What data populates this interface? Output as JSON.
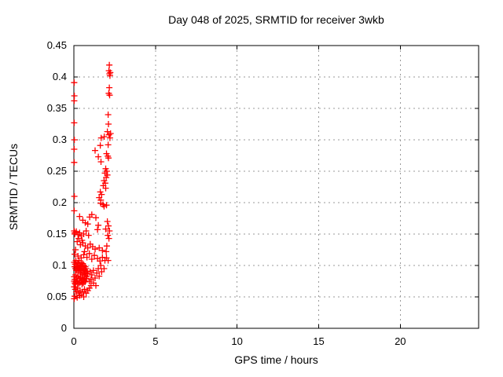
{
  "page": {
    "background": "#ffffff"
  },
  "chart_data": {
    "type": "scatter",
    "title": "Day 048 of 2025, SRMTID for receiver 3wkb",
    "xlabel": "GPS time / hours",
    "ylabel": "SRMTID / TECUs",
    "xlim": [
      0,
      24.8
    ],
    "ylim": [
      0,
      0.45
    ],
    "xticks": [
      0,
      5,
      10,
      15,
      20
    ],
    "xtick_labels": [
      "0",
      "5",
      "10",
      "15",
      "20"
    ],
    "yticks": [
      0,
      0.05,
      0.1,
      0.15,
      0.2,
      0.25,
      0.3,
      0.35,
      0.4,
      0.45
    ],
    "ytick_labels": [
      "0",
      "0.05",
      "0.1",
      "0.15",
      "0.2",
      "0.25",
      "0.3",
      "0.35",
      "0.4",
      "0.45"
    ],
    "grid": true,
    "legend_position": "none",
    "marker": {
      "shape": "plus",
      "color": "#ff0000",
      "size": 8
    },
    "grid_color": "#9a9a9a",
    "axis_color": "#000000",
    "series_name": "SRMTID",
    "points": [
      [
        0.02,
        0.391
      ],
      [
        0.03,
        0.37
      ],
      [
        0.02,
        0.362
      ],
      [
        0.02,
        0.327
      ],
      [
        0.03,
        0.3
      ],
      [
        0.02,
        0.285
      ],
      [
        0.02,
        0.264
      ],
      [
        0.03,
        0.21
      ],
      [
        0.02,
        0.187
      ],
      [
        0.02,
        0.155
      ],
      [
        0.06,
        0.152
      ],
      [
        2.17,
        0.419
      ],
      [
        2.15,
        0.41
      ],
      [
        2.18,
        0.405
      ],
      [
        2.21,
        0.402
      ],
      [
        2.23,
        0.407
      ],
      [
        2.17,
        0.383
      ],
      [
        2.14,
        0.374
      ],
      [
        2.19,
        0.371
      ],
      [
        2.1,
        0.34
      ],
      [
        2.12,
        0.325
      ],
      [
        2.05,
        0.313
      ],
      [
        2.15,
        0.308
      ],
      [
        2.21,
        0.303
      ],
      [
        1.67,
        0.303
      ],
      [
        1.86,
        0.305
      ],
      [
        2.25,
        0.31
      ],
      [
        2.1,
        0.292
      ],
      [
        1.62,
        0.291
      ],
      [
        2.0,
        0.278
      ],
      [
        2.08,
        0.274
      ],
      [
        2.12,
        0.271
      ],
      [
        1.66,
        0.265
      ],
      [
        1.95,
        0.254
      ],
      [
        2.02,
        0.25
      ],
      [
        1.9,
        0.247
      ],
      [
        2.05,
        0.244
      ],
      [
        1.98,
        0.24
      ],
      [
        1.85,
        0.235
      ],
      [
        1.92,
        0.231
      ],
      [
        1.8,
        0.227
      ],
      [
        1.95,
        0.223
      ],
      [
        1.62,
        0.217
      ],
      [
        1.7,
        0.213
      ],
      [
        1.55,
        0.208
      ],
      [
        1.65,
        0.204
      ],
      [
        1.64,
        0.199
      ],
      [
        1.78,
        0.197
      ],
      [
        2.0,
        0.196
      ],
      [
        1.85,
        0.194
      ],
      [
        1.3,
        0.283
      ],
      [
        1.5,
        0.273
      ],
      [
        0.35,
        0.178
      ],
      [
        0.55,
        0.172
      ],
      [
        0.97,
        0.177
      ],
      [
        1.1,
        0.181
      ],
      [
        1.35,
        0.176
      ],
      [
        0.7,
        0.168
      ],
      [
        1.5,
        0.164
      ],
      [
        1.45,
        0.157
      ],
      [
        0.85,
        0.166
      ],
      [
        0.05,
        0.15
      ],
      [
        0.15,
        0.154
      ],
      [
        0.25,
        0.149
      ],
      [
        0.35,
        0.152
      ],
      [
        0.45,
        0.147
      ],
      [
        0.6,
        0.15
      ],
      [
        0.75,
        0.155
      ],
      [
        0.9,
        0.148
      ],
      [
        0.3,
        0.143
      ],
      [
        0.5,
        0.14
      ],
      [
        1.95,
        0.158
      ],
      [
        2.05,
        0.17
      ],
      [
        2.12,
        0.163
      ],
      [
        2.18,
        0.155
      ],
      [
        2.08,
        0.148
      ],
      [
        2.15,
        0.143
      ],
      [
        0.2,
        0.138
      ],
      [
        0.4,
        0.133
      ],
      [
        0.55,
        0.136
      ],
      [
        0.7,
        0.131
      ],
      [
        0.85,
        0.128
      ],
      [
        1.0,
        0.134
      ],
      [
        1.15,
        0.13
      ],
      [
        1.3,
        0.126
      ],
      [
        1.55,
        0.128
      ],
      [
        1.75,
        0.124
      ],
      [
        0.1,
        0.125
      ],
      [
        0.65,
        0.122
      ],
      [
        2.02,
        0.131
      ],
      [
        1.98,
        0.122
      ],
      [
        0.05,
        0.118
      ],
      [
        0.25,
        0.115
      ],
      [
        0.45,
        0.112
      ],
      [
        0.6,
        0.117
      ],
      [
        0.8,
        0.113
      ],
      [
        0.95,
        0.119
      ],
      [
        1.1,
        0.11
      ],
      [
        1.25,
        0.116
      ],
      [
        1.45,
        0.111
      ],
      [
        1.6,
        0.107
      ],
      [
        1.75,
        0.113
      ],
      [
        1.9,
        0.108
      ],
      [
        2.0,
        0.112
      ],
      [
        2.1,
        0.108
      ],
      [
        0.02,
        0.105
      ],
      [
        0.05,
        0.098
      ],
      [
        0.08,
        0.102
      ],
      [
        0.1,
        0.095
      ],
      [
        0.12,
        0.108
      ],
      [
        0.15,
        0.092
      ],
      [
        0.17,
        0.1
      ],
      [
        0.2,
        0.104
      ],
      [
        0.22,
        0.097
      ],
      [
        0.25,
        0.09
      ],
      [
        0.27,
        0.103
      ],
      [
        0.3,
        0.096
      ],
      [
        0.32,
        0.108
      ],
      [
        0.35,
        0.094
      ],
      [
        0.37,
        0.101
      ],
      [
        0.4,
        0.088
      ],
      [
        0.42,
        0.098
      ],
      [
        0.45,
        0.105
      ],
      [
        0.47,
        0.092
      ],
      [
        0.5,
        0.099
      ],
      [
        0.52,
        0.086
      ],
      [
        0.55,
        0.103
      ],
      [
        0.57,
        0.095
      ],
      [
        0.6,
        0.09
      ],
      [
        0.62,
        0.1
      ],
      [
        0.65,
        0.084
      ],
      [
        0.67,
        0.093
      ],
      [
        0.7,
        0.098
      ],
      [
        0.72,
        0.088
      ],
      [
        0.75,
        0.095
      ],
      [
        0.78,
        0.082
      ],
      [
        0.8,
        0.091
      ],
      [
        0.85,
        0.087
      ],
      [
        0.02,
        0.082
      ],
      [
        0.06,
        0.078
      ],
      [
        0.1,
        0.085
      ],
      [
        0.14,
        0.074
      ],
      [
        0.18,
        0.08
      ],
      [
        0.22,
        0.076
      ],
      [
        0.26,
        0.083
      ],
      [
        0.3,
        0.071
      ],
      [
        0.34,
        0.079
      ],
      [
        0.38,
        0.073
      ],
      [
        0.42,
        0.081
      ],
      [
        0.46,
        0.075
      ],
      [
        0.5,
        0.07
      ],
      [
        0.54,
        0.078
      ],
      [
        0.58,
        0.072
      ],
      [
        0.62,
        0.076
      ],
      [
        0.66,
        0.08
      ],
      [
        0.7,
        0.074
      ],
      [
        0.75,
        0.079
      ],
      [
        0.02,
        0.075
      ],
      [
        0.06,
        0.072
      ],
      [
        0.1,
        0.07
      ],
      [
        0.02,
        0.066
      ],
      [
        0.08,
        0.062
      ],
      [
        0.15,
        0.058
      ],
      [
        0.22,
        0.064
      ],
      [
        0.3,
        0.056
      ],
      [
        0.38,
        0.06
      ],
      [
        0.45,
        0.053
      ],
      [
        0.55,
        0.058
      ],
      [
        0.65,
        0.062
      ],
      [
        0.75,
        0.056
      ],
      [
        0.85,
        0.06
      ],
      [
        0.95,
        0.064
      ],
      [
        0.05,
        0.051
      ],
      [
        0.2,
        0.049
      ],
      [
        0.35,
        0.052
      ],
      [
        0.6,
        0.05
      ],
      [
        1.05,
        0.068
      ],
      [
        0.02,
        0.047
      ],
      [
        1.0,
        0.09
      ],
      [
        1.1,
        0.085
      ],
      [
        1.2,
        0.092
      ],
      [
        1.3,
        0.08
      ],
      [
        1.4,
        0.088
      ],
      [
        1.55,
        0.083
      ],
      [
        1.7,
        0.09
      ],
      [
        1.85,
        0.095
      ],
      [
        1.2,
        0.072
      ],
      [
        1.35,
        0.068
      ],
      [
        0.95,
        0.075
      ],
      [
        1.05,
        0.078
      ],
      [
        1.5,
        0.095
      ],
      [
        1.65,
        0.1
      ]
    ]
  }
}
